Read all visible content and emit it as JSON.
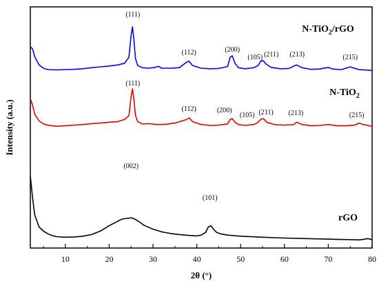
{
  "chart_data": {
    "type": "line",
    "xlabel": "2θ (°)",
    "ylabel": "Intensity (a.u.)",
    "xlim": [
      2,
      80
    ],
    "x_ticks": [
      "10",
      "20",
      "30",
      "40",
      "50",
      "60",
      "70",
      "80"
    ],
    "y_ticks_labeled": false,
    "grid": false,
    "series": [
      {
        "name_main": "N-TiO",
        "name_sub": "2",
        "name_suffix": "/rGO",
        "color": "#0000ff",
        "x": [
          2,
          2.5,
          3,
          4,
          5,
          6,
          8,
          10,
          12,
          14,
          16,
          18,
          20,
          22,
          23.5,
          24.5,
          25,
          25.3,
          25.6,
          26,
          26.5,
          27.5,
          29,
          30.5,
          31.2,
          32,
          34,
          36,
          37.5,
          38.2,
          39,
          41,
          43,
          45,
          47,
          47.6,
          48.1,
          48.7,
          49.5,
          51,
          53,
          54,
          54.5,
          55.1,
          55.8,
          57,
          59,
          61,
          62.7,
          64,
          66,
          68,
          70,
          71,
          73,
          75,
          75.5,
          77,
          79,
          80
        ],
        "y": [
          0.88,
          0.8,
          0.52,
          0.22,
          0.1,
          0.05,
          0.04,
          0.05,
          0.06,
          0.08,
          0.12,
          0.15,
          0.18,
          0.22,
          0.28,
          0.5,
          1.3,
          1.6,
          1.2,
          0.45,
          0.2,
          0.12,
          0.1,
          0.13,
          0.17,
          0.1,
          0.1,
          0.12,
          0.3,
          0.36,
          0.2,
          0.1,
          0.08,
          0.09,
          0.16,
          0.5,
          0.55,
          0.28,
          0.12,
          0.08,
          0.12,
          0.2,
          0.34,
          0.38,
          0.25,
          0.13,
          0.08,
          0.09,
          0.22,
          0.12,
          0.06,
          0.07,
          0.13,
          0.07,
          0.05,
          0.15,
          0.12,
          0.05,
          0.03,
          0.02
        ]
      },
      {
        "name_main": "N-TiO",
        "name_sub": "2",
        "name_suffix": "",
        "color": "#e00000",
        "x": [
          2,
          2.5,
          3,
          4,
          5,
          6,
          8,
          10,
          12,
          14,
          16,
          18,
          20,
          22,
          23.5,
          24.5,
          25,
          25.3,
          25.6,
          26,
          26.5,
          27.5,
          29,
          31,
          33,
          35,
          37.5,
          38.3,
          39,
          41,
          43,
          45,
          47,
          47.6,
          48.1,
          48.8,
          49.5,
          51,
          53,
          54,
          54.6,
          55.2,
          56,
          58,
          60,
          62,
          62.8,
          64,
          66,
          68,
          70,
          72,
          74,
          76,
          77,
          78,
          80
        ],
        "y": [
          0.98,
          0.75,
          0.45,
          0.22,
          0.12,
          0.08,
          0.04,
          0.06,
          0.08,
          0.1,
          0.13,
          0.15,
          0.18,
          0.2,
          0.27,
          0.4,
          1.05,
          1.3,
          1.0,
          0.4,
          0.2,
          0.12,
          0.13,
          0.1,
          0.11,
          0.15,
          0.26,
          0.32,
          0.2,
          0.1,
          0.07,
          0.08,
          0.12,
          0.27,
          0.3,
          0.16,
          0.1,
          0.07,
          0.1,
          0.18,
          0.28,
          0.3,
          0.17,
          0.09,
          0.08,
          0.09,
          0.18,
          0.1,
          0.06,
          0.07,
          0.1,
          0.06,
          0.06,
          0.08,
          0.15,
          0.1,
          0.04
        ]
      },
      {
        "name_main": "rGO",
        "name_sub": "",
        "name_suffix": "",
        "color": "#000000",
        "x": [
          2,
          2.5,
          3,
          4,
          5,
          6,
          7,
          8,
          10,
          12,
          14,
          16,
          18,
          20,
          22,
          23,
          24,
          25,
          25.5,
          26,
          27,
          28,
          30,
          32,
          34,
          36,
          38,
          40,
          41,
          42,
          42.6,
          43.2,
          43.8,
          44.5,
          45.5,
          47,
          50,
          55,
          60,
          65,
          70,
          72,
          75,
          77,
          78,
          79,
          80
        ],
        "y": [
          2.4,
          1.6,
          0.95,
          0.5,
          0.35,
          0.25,
          0.18,
          0.14,
          0.12,
          0.13,
          0.16,
          0.22,
          0.35,
          0.55,
          0.72,
          0.8,
          0.82,
          0.84,
          0.82,
          0.78,
          0.68,
          0.56,
          0.42,
          0.32,
          0.26,
          0.22,
          0.19,
          0.17,
          0.2,
          0.3,
          0.5,
          0.55,
          0.42,
          0.3,
          0.24,
          0.2,
          0.16,
          0.12,
          0.09,
          0.07,
          0.05,
          0.04,
          0.03,
          0.02,
          0.04,
          0.07,
          0.03
        ]
      }
    ],
    "annotations": [
      {
        "series": 0,
        "x": 25.4,
        "label": "(111)"
      },
      {
        "series": 0,
        "x": 38.2,
        "label": "(112)"
      },
      {
        "series": 0,
        "x": 48.1,
        "label": "(200)"
      },
      {
        "series": 0,
        "x": 53.3,
        "label": "(105)"
      },
      {
        "series": 0,
        "x": 57.0,
        "label": "(211)"
      },
      {
        "series": 0,
        "x": 62.9,
        "label": "(213)"
      },
      {
        "series": 0,
        "x": 75.0,
        "label": "(215)"
      },
      {
        "series": 1,
        "x": 25.4,
        "label": "(111)"
      },
      {
        "series": 1,
        "x": 38.2,
        "label": "(112)"
      },
      {
        "series": 1,
        "x": 46.3,
        "label": "(200)"
      },
      {
        "series": 1,
        "x": 51.5,
        "label": "(105)"
      },
      {
        "series": 1,
        "x": 55.8,
        "label": "(211)"
      },
      {
        "series": 1,
        "x": 62.6,
        "label": "(213)"
      },
      {
        "series": 1,
        "x": 76.5,
        "label": "(215)"
      },
      {
        "series": 2,
        "x": 25.0,
        "label": "(002)"
      },
      {
        "series": 2,
        "x": 43.0,
        "label": "(101)"
      }
    ]
  }
}
